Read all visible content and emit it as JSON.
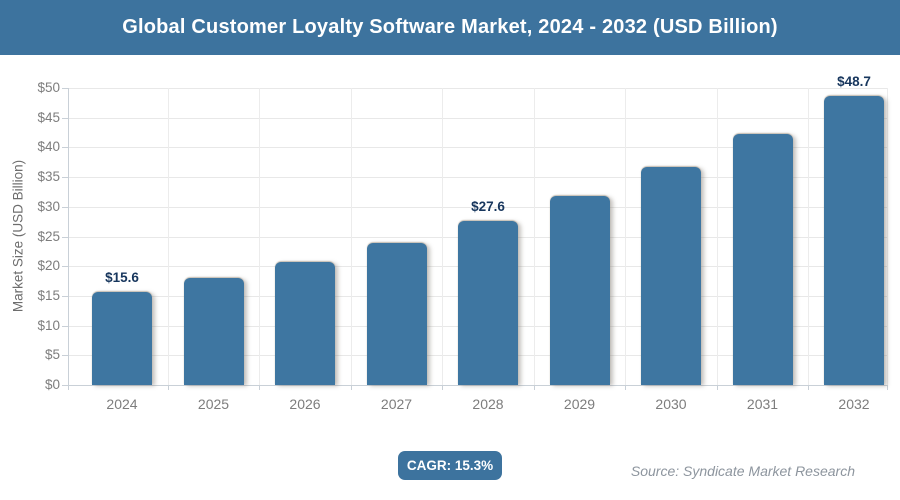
{
  "header": {
    "title": "Global Customer Loyalty Software Market, 2024 - 2032 (USD Billion)"
  },
  "chart_data": {
    "type": "bar",
    "title": "Global Customer Loyalty Software Market, 2024 - 2032 (USD Billion)",
    "categories": [
      "2024",
      "2025",
      "2026",
      "2027",
      "2028",
      "2029",
      "2030",
      "2031",
      "2032"
    ],
    "values": [
      15.6,
      18.0,
      20.7,
      23.9,
      27.6,
      31.8,
      36.7,
      42.3,
      48.7
    ],
    "data_labels": [
      "$15.6",
      null,
      null,
      null,
      "$27.6",
      null,
      null,
      null,
      "$48.7"
    ],
    "xlabel": "",
    "ylabel": "Market Size (USD Billion)",
    "ylim": [
      0,
      50
    ],
    "ytick_step": 5,
    "ytick_prefix": "$",
    "grid": true,
    "legend": "none",
    "bar_color": "#3e76a1"
  },
  "footer": {
    "cagr_label": "CAGR: 15.3%",
    "source": "Source: Syndicate Market Research"
  },
  "colors": {
    "header_bg": "#3d739e",
    "bar": "#3e76a1",
    "badge_bg": "#3d739e",
    "data_label": "#17365d",
    "axis_text": "#7d7d7d",
    "gridline": "#e8e8e8",
    "axis_line": "#c9d0d7",
    "source_text": "#8d959e"
  }
}
